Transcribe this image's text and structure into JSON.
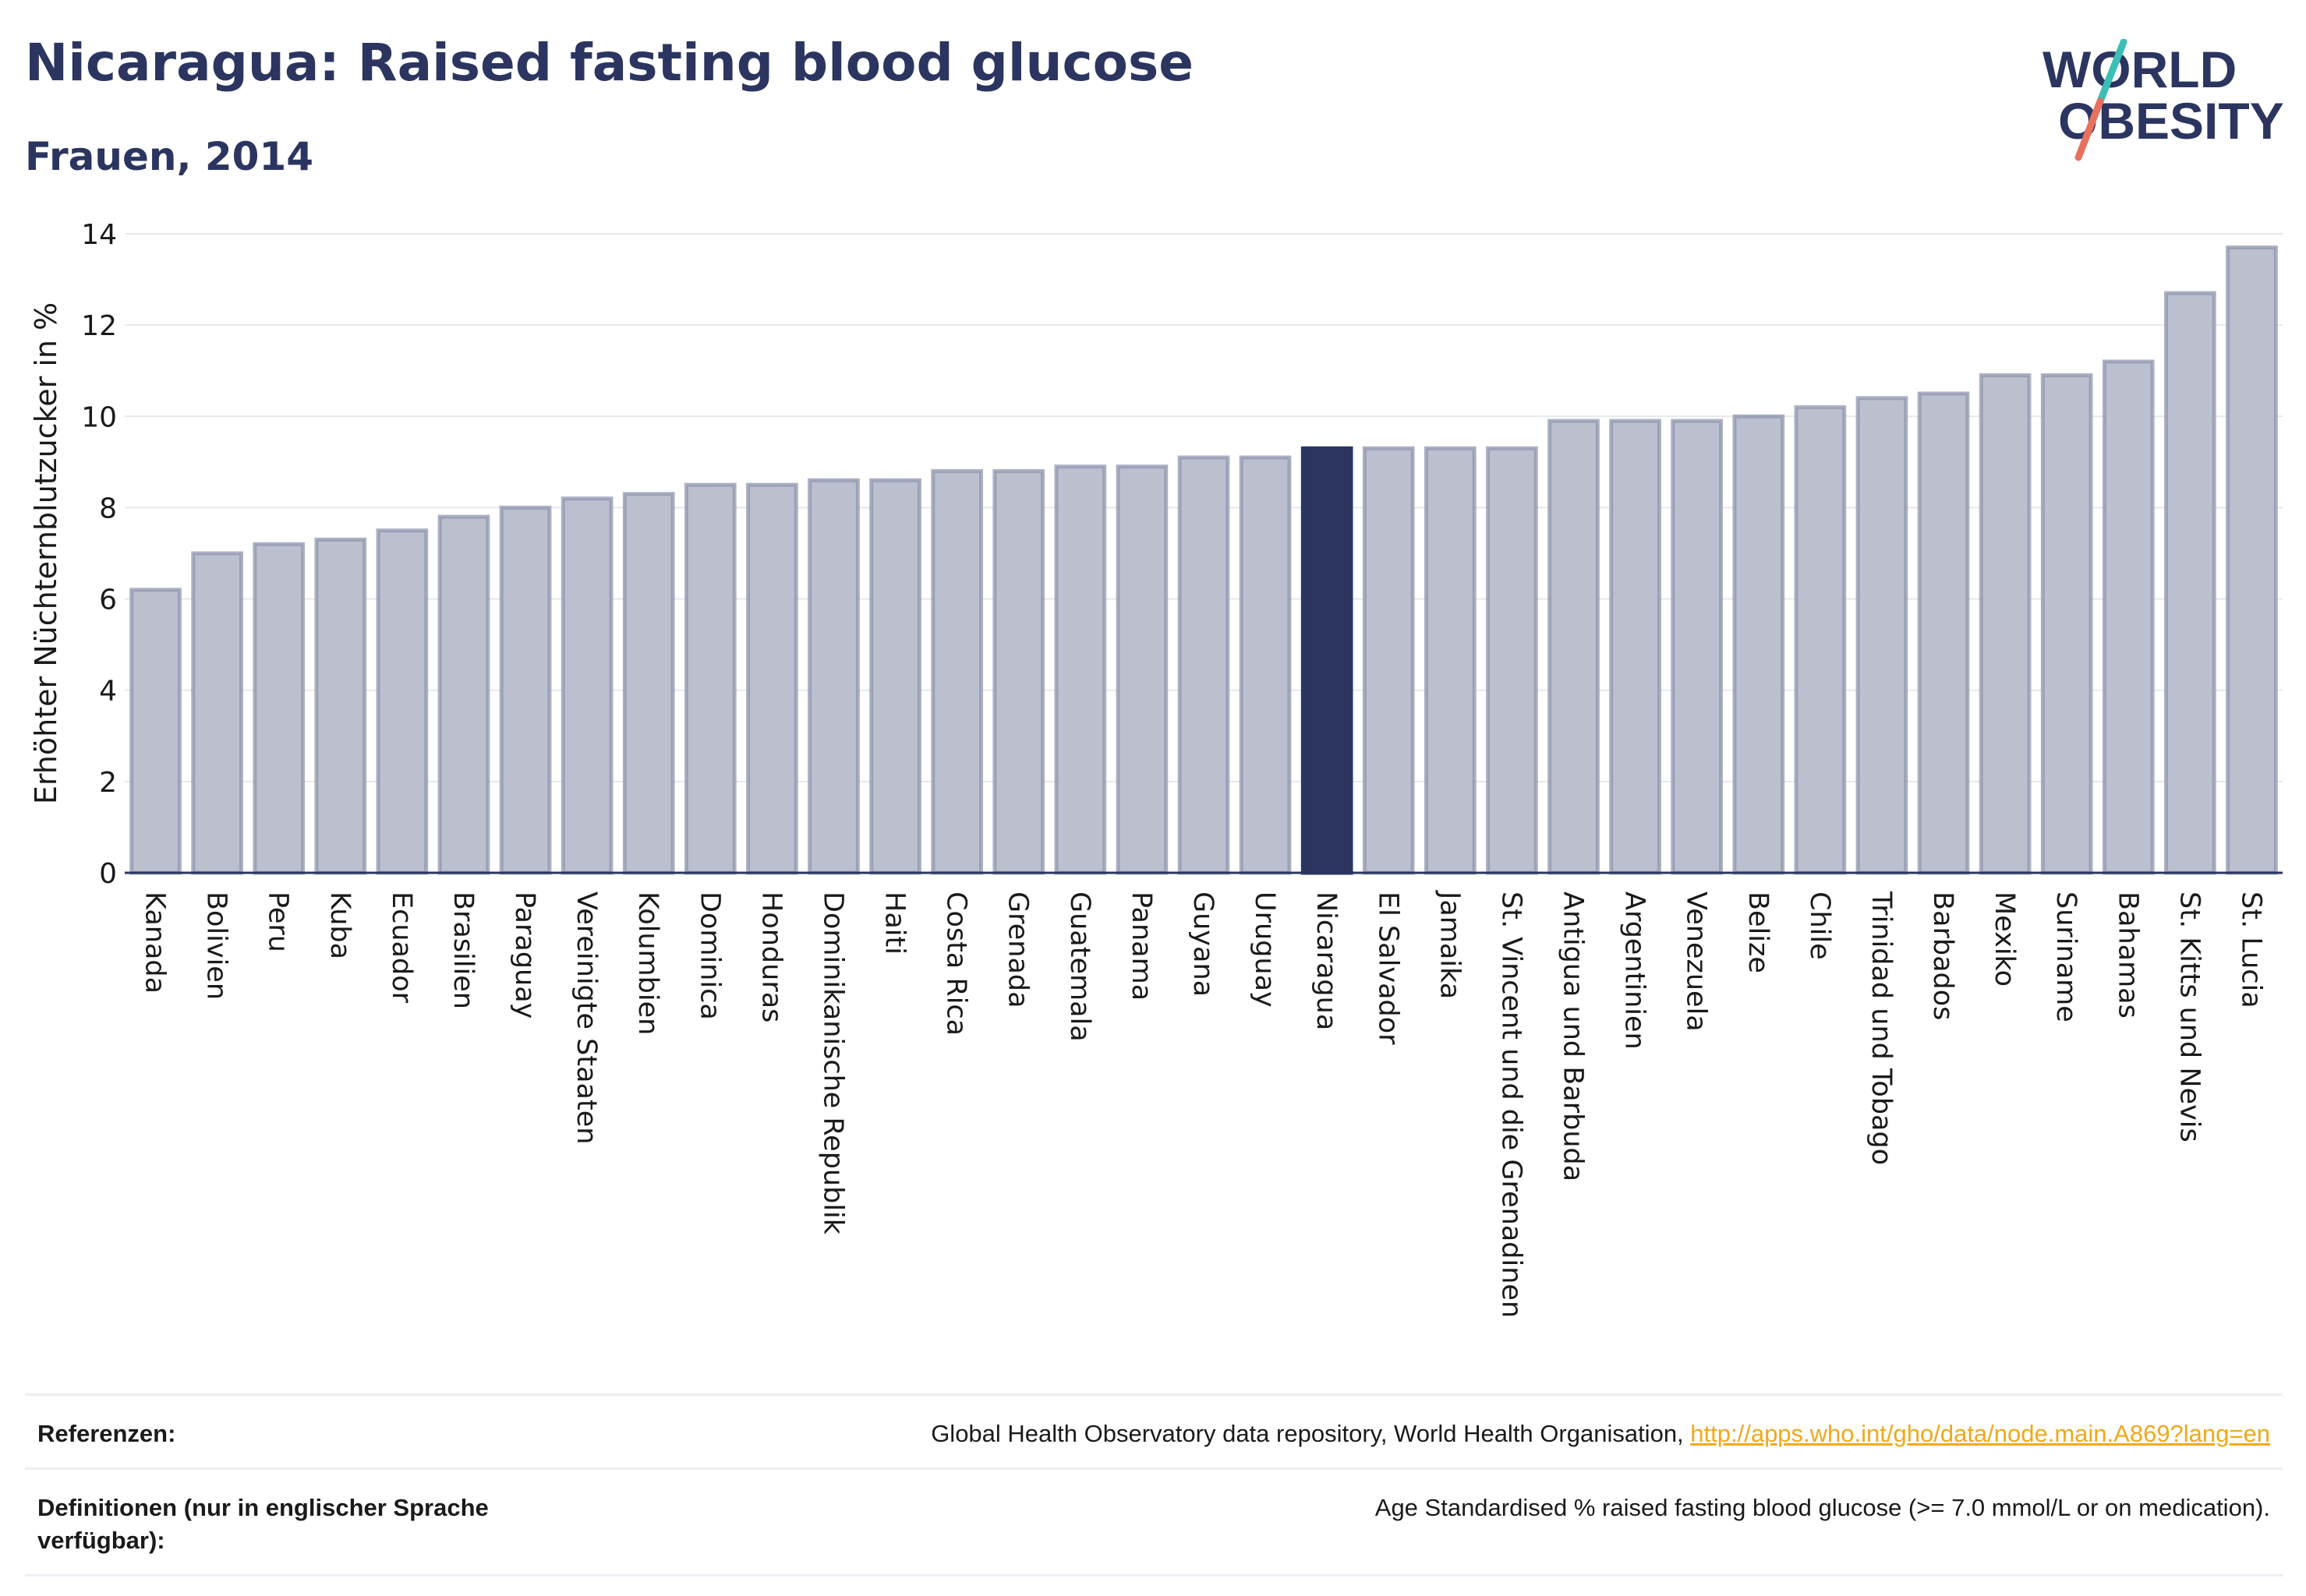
{
  "header": {
    "title": "Nicaragua: Raised fasting blood glucose",
    "subtitle": "Frauen, 2014"
  },
  "logo": {
    "line1": "WORLD",
    "line2": "OBESITY",
    "colors": {
      "text": "#2b3560",
      "slash_top": "#3bbfb5",
      "slash_bottom": "#e8705f"
    }
  },
  "chart_data": {
    "type": "bar",
    "ylabel": "Erhöhter Nüchternblutzucker in %",
    "xlabel": "",
    "ylim": [
      0,
      14
    ],
    "yticks": [
      0,
      2,
      4,
      6,
      8,
      10,
      12,
      14
    ],
    "grid": true,
    "highlight": "Nicaragua",
    "colors": {
      "bar": "#bcc0ce",
      "bar_edge": "#8f95ad",
      "highlight": "#2b3560"
    },
    "categories": [
      "Kanada",
      "Bolivien",
      "Peru",
      "Kuba",
      "Ecuador",
      "Brasilien",
      "Paraguay",
      "Vereinigte Staaten",
      "Kolumbien",
      "Dominica",
      "Honduras",
      "Dominikanische Republik",
      "Haiti",
      "Costa Rica",
      "Grenada",
      "Guatemala",
      "Panama",
      "Guyana",
      "Uruguay",
      "Nicaragua",
      "El Salvador",
      "Jamaika",
      "St. Vincent und die Grenadinen",
      "Antigua und Barbuda",
      "Argentinien",
      "Venezuela",
      "Belize",
      "Chile",
      "Trinidad und Tobago",
      "Barbados",
      "Mexiko",
      "Suriname",
      "Bahamas",
      "St. Kitts und Nevis",
      "St. Lucia"
    ],
    "values": [
      6.2,
      7.0,
      7.2,
      7.3,
      7.5,
      7.8,
      8.0,
      8.2,
      8.3,
      8.5,
      8.5,
      8.6,
      8.6,
      8.8,
      8.8,
      8.9,
      8.9,
      9.1,
      9.1,
      9.3,
      9.3,
      9.3,
      9.3,
      9.9,
      9.9,
      9.9,
      10.0,
      10.2,
      10.4,
      10.5,
      10.9,
      10.9,
      11.2,
      12.7,
      13.7
    ]
  },
  "references": {
    "ref_label": "Referenzen:",
    "ref_text": "Global Health Observatory data repository, World Health Organisation, ",
    "ref_link": "http://apps.who.int/gho/data/node.main.A869?lang=en",
    "def_label": "Definitionen (nur in englischer Sprache verfügbar):",
    "def_text": "Age Standardised % raised fasting blood glucose (>= 7.0 mmol/L or on medication)."
  }
}
